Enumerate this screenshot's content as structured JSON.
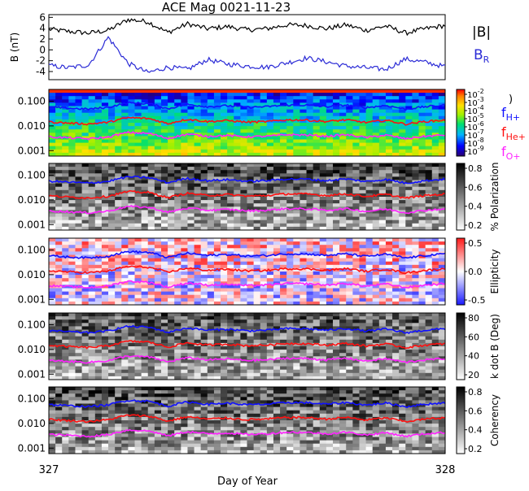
{
  "title": "ACE Mag 0021-11-23",
  "xlabel": "Day of Year",
  "x_ticks": [
    "327",
    "328"
  ],
  "colors": {
    "btotal": "#000000",
    "br": "#2b2bd6",
    "h_plus": "#1010ff",
    "he_plus": "#ff1010",
    "o_plus": "#ff22ff"
  },
  "chart_data": [
    {
      "type": "line",
      "panel": "magnetic-field",
      "ylabel": "B (nT)",
      "y_ticks": [
        "6",
        "4",
        "2",
        "0",
        "-2",
        "-4"
      ],
      "ylim": [
        -5.5,
        6.5
      ],
      "xlim": [
        327,
        328
      ],
      "legend": [
        "|B|",
        "B_R"
      ],
      "series": [
        {
          "name": "|B|",
          "x": [
            327.0,
            327.05,
            327.1,
            327.15,
            327.2,
            327.25,
            327.3,
            327.35,
            327.4,
            327.45,
            327.5,
            327.55,
            327.6,
            327.65,
            327.7,
            327.75,
            327.8,
            327.85,
            327.9,
            327.95,
            328.0
          ],
          "values": [
            3.8,
            3.4,
            3.1,
            3.6,
            5.6,
            5.2,
            3.2,
            4.8,
            3.9,
            4.3,
            3.7,
            3.9,
            4.6,
            4.5,
            3.9,
            4.6,
            3.6,
            4.4,
            3.1,
            3.9,
            4.5
          ]
        },
        {
          "name": "B_R",
          "x": [
            327.0,
            327.05,
            327.1,
            327.15,
            327.2,
            327.25,
            327.3,
            327.35,
            327.4,
            327.45,
            327.5,
            327.55,
            327.6,
            327.65,
            327.7,
            327.75,
            327.8,
            327.85,
            327.9,
            327.95,
            328.0
          ],
          "values": [
            -2.9,
            -3.3,
            -2.8,
            2.3,
            -2.5,
            -4.2,
            -3.2,
            -3.6,
            -1.8,
            -2.6,
            -3.0,
            -3.2,
            -2.4,
            -1.5,
            -2.2,
            -3.0,
            -3.3,
            -3.6,
            -1.7,
            -2.3,
            -3.1
          ]
        }
      ]
    },
    {
      "type": "heatmap",
      "panel": "power-spectrum",
      "colormap": "rainbow",
      "colorbar_ticks": [
        "10^-2",
        "10^-3",
        "10^-4",
        "10^-5",
        "10^-6",
        "10^-7",
        "10^-8",
        "10^-9"
      ],
      "colorbar_title": ")",
      "y_ticks": [
        "0.100",
        "0.010",
        "0.001"
      ],
      "legend": [
        "f_H+",
        "f_He+",
        "f_O+"
      ]
    },
    {
      "type": "heatmap",
      "panel": "polarization",
      "colormap": "gray",
      "colorbar_label": "% Polarization",
      "colorbar_ticks": [
        "0.8",
        "0.6",
        "0.4",
        "0.2"
      ],
      "y_ticks": [
        "0.100",
        "0.010",
        "0.001"
      ]
    },
    {
      "type": "heatmap",
      "panel": "ellipticity",
      "colormap": "blue-white-red",
      "colorbar_label": "Ellipticity",
      "colorbar_ticks": [
        "0.5",
        "0.0",
        "-0.5"
      ],
      "y_ticks": [
        "0.100",
        "0.010",
        "0.001"
      ]
    },
    {
      "type": "heatmap",
      "panel": "k-dot-b",
      "colormap": "gray",
      "colorbar_label": "k dot B (Deg)",
      "colorbar_ticks": [
        "80",
        "60",
        "40",
        "20"
      ],
      "y_ticks": [
        "0.100",
        "0.010",
        "0.001"
      ]
    },
    {
      "type": "heatmap",
      "panel": "coherency",
      "colormap": "gray",
      "colorbar_label": "Coherency",
      "colorbar_ticks": [
        "0.8",
        "0.6",
        "0.4",
        "0.2"
      ],
      "y_ticks": [
        "0.100",
        "0.010",
        "0.001"
      ]
    }
  ],
  "gyrofrequency_lines": {
    "x": [
      327.0,
      327.05,
      327.1,
      327.15,
      327.2,
      327.25,
      327.3,
      327.35,
      327.4,
      327.45,
      327.5,
      327.55,
      327.6,
      327.65,
      327.7,
      327.75,
      327.8,
      327.85,
      327.9,
      327.95,
      328.0
    ],
    "h_plus": [
      0.058,
      0.052,
      0.048,
      0.056,
      0.086,
      0.08,
      0.049,
      0.074,
      0.06,
      0.066,
      0.057,
      0.06,
      0.07,
      0.069,
      0.06,
      0.07,
      0.055,
      0.067,
      0.047,
      0.06,
      0.069
    ],
    "he_plus": [
      0.0145,
      0.013,
      0.012,
      0.014,
      0.0215,
      0.02,
      0.0122,
      0.0185,
      0.015,
      0.0165,
      0.0142,
      0.015,
      0.0175,
      0.0172,
      0.015,
      0.0175,
      0.0137,
      0.0167,
      0.0118,
      0.015,
      0.0172
    ],
    "o_plus": [
      0.0036,
      0.0033,
      0.003,
      0.0035,
      0.0054,
      0.005,
      0.0031,
      0.0046,
      0.0038,
      0.0041,
      0.0036,
      0.0038,
      0.0044,
      0.0043,
      0.0038,
      0.0044,
      0.0034,
      0.0042,
      0.003,
      0.0038,
      0.0043
    ]
  }
}
